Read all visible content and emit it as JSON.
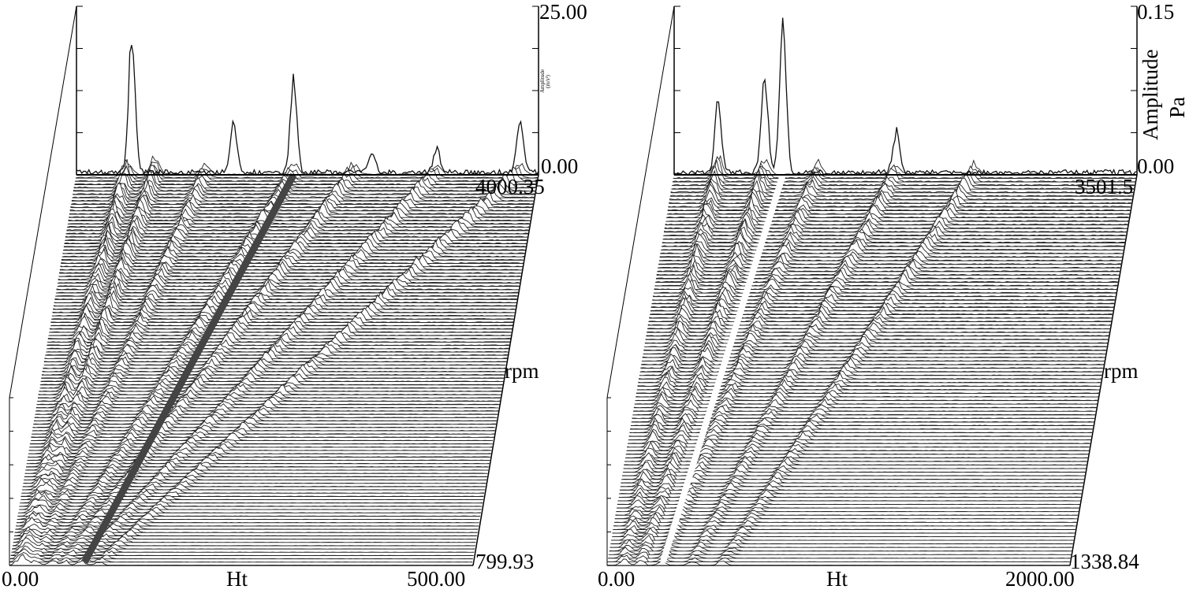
{
  "chart_data": [
    {
      "type": "waterfall",
      "title": "",
      "xlabel": "Ht",
      "zlabel": "rpm",
      "ylabel_small": "Amplitude",
      "ylabel_unit_small": "(m/s²)",
      "x_min_label": "0.00",
      "x_max_label": "500.00",
      "xlim": [
        0,
        500
      ],
      "y_max_label": "25.00",
      "y_min_label": "0.00",
      "ylim": [
        0,
        25
      ],
      "rpm_top_label": "4000.35",
      "rpm_bottom_label": "799.93",
      "rpm_range": [
        799.93,
        4000.35
      ],
      "front_peaks_ht": [
        60,
        170,
        235,
        320,
        390,
        480
      ],
      "front_peak_values": [
        23,
        8,
        15,
        3,
        4,
        9
      ],
      "order_lines_ht_at_top": [
        55,
        85,
        140,
        235,
        300,
        390,
        480
      ]
    },
    {
      "type": "waterfall",
      "title": "",
      "xlabel": "Ht",
      "zlabel": "rpm",
      "ylabel": "Amplitude",
      "ylabel_unit": "Pa",
      "x_min_label": "0.00",
      "x_max_label": "2000.00",
      "xlim": [
        0,
        2000
      ],
      "y_max_label": "0.15",
      "y_min_label": "0.00",
      "ylim": [
        0,
        0.15
      ],
      "rpm_top_label": "3501.5",
      "rpm_bottom_label": "1338.84",
      "rpm_range": [
        1338.84,
        3501.5
      ],
      "front_peaks_ht": [
        190,
        390,
        470,
        960
      ],
      "front_peak_values": [
        0.07,
        0.1,
        0.15,
        0.04
      ],
      "order_lines_ht_at_top": [
        190,
        390,
        620,
        960,
        1300
      ]
    }
  ]
}
